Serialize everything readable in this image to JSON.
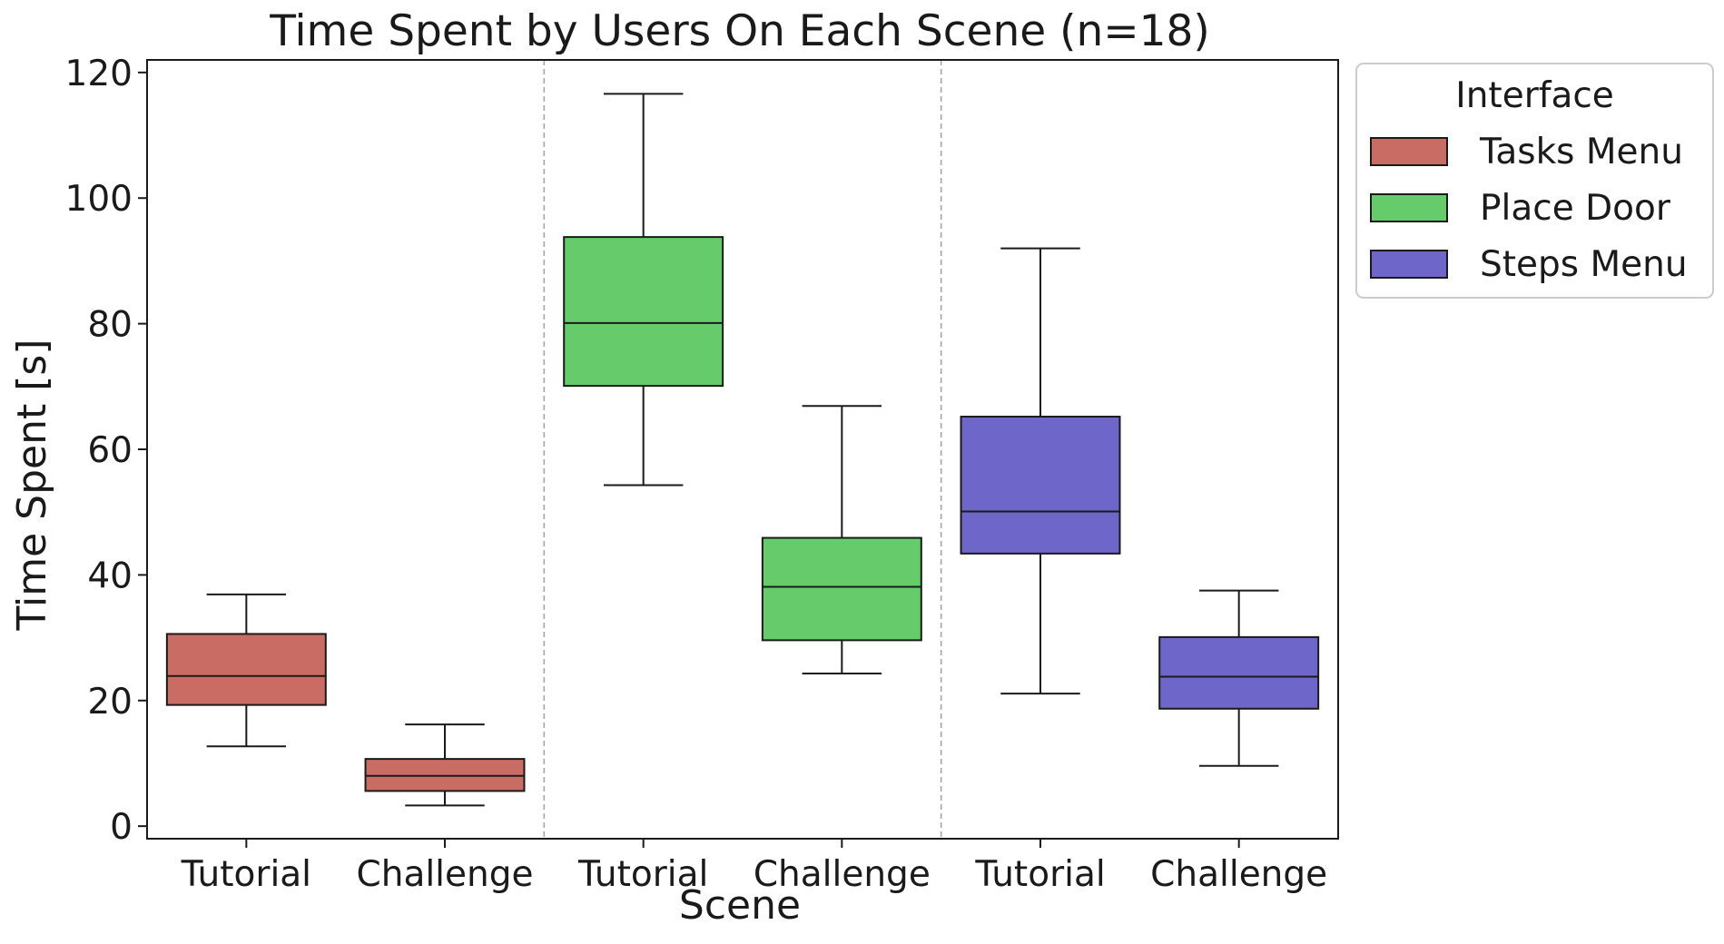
{
  "chart_data": {
    "type": "box",
    "title": "Time Spent by Users On Each Scene (n=18)",
    "xlabel": "Scene",
    "ylabel": "Time Spent [s]",
    "ylim": [
      -2,
      122
    ],
    "yticks": [
      0,
      20,
      40,
      60,
      80,
      100,
      120
    ],
    "categories": [
      "Tutorial",
      "Challenge",
      "Tutorial",
      "Challenge",
      "Tutorial",
      "Challenge"
    ],
    "grid": false,
    "legend": {
      "title": "Interface",
      "position": "outside-top-right"
    },
    "series": [
      {
        "name": "Tasks Menu",
        "color": "#c96c64",
        "boxes": [
          {
            "scene": "Tutorial",
            "whisker_low": 12.7,
            "q1": 19.3,
            "median": 23.9,
            "q3": 30.6,
            "whisker_high": 36.9
          },
          {
            "scene": "Challenge",
            "whisker_low": 3.3,
            "q1": 5.6,
            "median": 8.0,
            "q3": 10.7,
            "whisker_high": 16.2
          }
        ]
      },
      {
        "name": "Place Door",
        "color": "#66cc6b",
        "boxes": [
          {
            "scene": "Tutorial",
            "whisker_low": 54.3,
            "q1": 70.1,
            "median": 80.1,
            "q3": 93.8,
            "whisker_high": 116.6
          },
          {
            "scene": "Challenge",
            "whisker_low": 24.3,
            "q1": 29.6,
            "median": 38.1,
            "q3": 45.9,
            "whisker_high": 66.9
          }
        ]
      },
      {
        "name": "Steps Menu",
        "color": "#6e66c9",
        "boxes": [
          {
            "scene": "Tutorial",
            "whisker_low": 21.1,
            "q1": 43.4,
            "median": 50.1,
            "q3": 65.2,
            "whisker_high": 92.0
          },
          {
            "scene": "Challenge",
            "whisker_low": 9.6,
            "q1": 18.7,
            "median": 23.8,
            "q3": 30.1,
            "whisker_high": 37.5
          }
        ]
      }
    ]
  }
}
